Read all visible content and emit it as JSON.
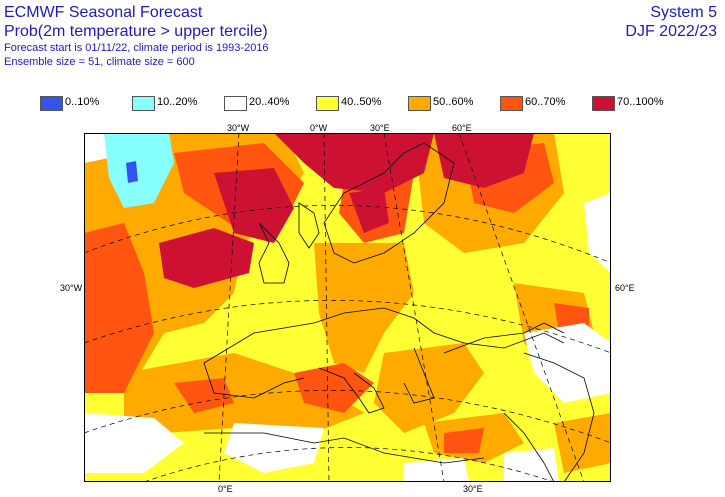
{
  "header": {
    "title": "ECMWF Seasonal Forecast",
    "subtitle": "Prob(2m temperature > upper tercile)",
    "line1": "Forecast start is 01/11/22, climate period is 1993-2016",
    "line2": "Ensemble size = 51, climate size = 600",
    "system": "System 5",
    "season": "DJF 2022/23"
  },
  "legend": [
    {
      "label": "0..10%",
      "color": "#3355ee"
    },
    {
      "label": "10..20%",
      "color": "#88ffff"
    },
    {
      "label": "20..40%",
      "color": "#ffffff"
    },
    {
      "label": "40..50%",
      "color": "#ffff33"
    },
    {
      "label": "50..60%",
      "color": "#ffaa00"
    },
    {
      "label": "60..70%",
      "color": "#ff5511"
    },
    {
      "label": "70..100%",
      "color": "#cc1133"
    }
  ],
  "coords": {
    "top_30w": "30°W",
    "top_0w": "0°W",
    "top_30e": "30°E",
    "top_60e": "60°E",
    "left_30w": "30°W",
    "right_60e": "60°E",
    "bottom_0e": "0°E",
    "bottom_30e": "30°E"
  }
}
